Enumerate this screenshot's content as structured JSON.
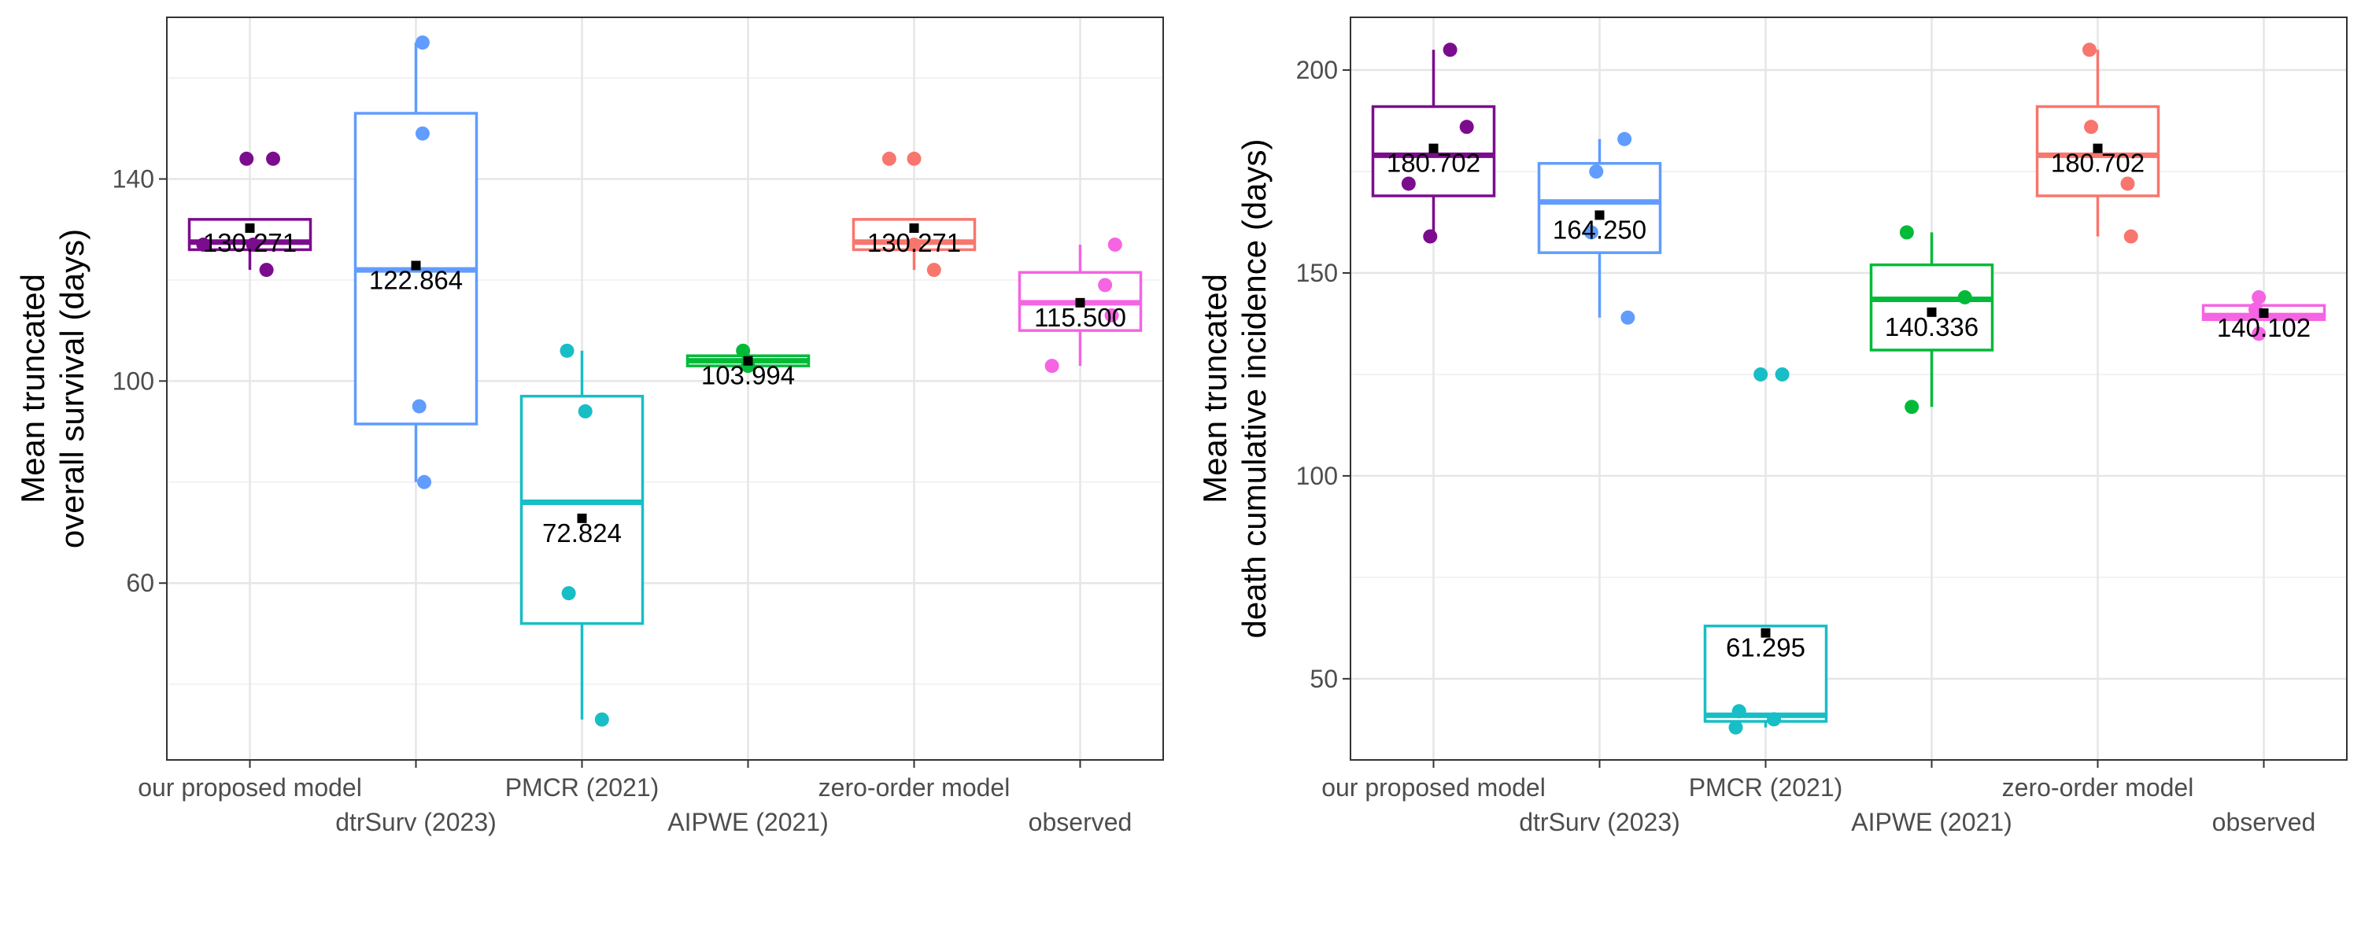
{
  "chart_data": [
    {
      "type": "box",
      "ylabel_lines": [
        "Mean truncated",
        "overall survival (days)"
      ],
      "ylim": [
        25,
        172
      ],
      "yticks": [
        60,
        100,
        140
      ],
      "categories": [
        "our proposed model",
        "dtrSurv (2023)",
        "PMCR (2021)",
        "AIPWE (2021)",
        "zero-order model",
        "observed"
      ],
      "grid": true,
      "boxes": [
        {
          "category": "our proposed model",
          "color": "#7B0C8E",
          "q1": 126,
          "median": 127.5,
          "q3": 132,
          "whisker_low": 122,
          "whisker_high": 132,
          "mean": 130.271,
          "mean_label": "130.271",
          "points": [
            [
              -0.28,
              127
            ],
            [
              -0.02,
              144
            ],
            [
              0.02,
              127
            ],
            [
              0.1,
              122
            ],
            [
              0.14,
              144
            ]
          ]
        },
        {
          "category": "dtrSurv (2023)",
          "color": "#619CFF",
          "q1": 91.5,
          "median": 122,
          "q3": 153,
          "whisker_low": 80,
          "whisker_high": 167,
          "mean": 122.864,
          "mean_label": "122.864",
          "points": [
            [
              0.04,
              167
            ],
            [
              0.04,
              149
            ],
            [
              0.02,
              95
            ],
            [
              0.05,
              80
            ]
          ]
        },
        {
          "category": "PMCR (2021)",
          "color": "#17BEC6",
          "q1": 52,
          "median": 76,
          "q3": 97,
          "whisker_low": 33,
          "whisker_high": 106,
          "mean": 72.824,
          "mean_label": "72.824",
          "points": [
            [
              -0.09,
              106
            ],
            [
              0.02,
              94
            ],
            [
              -0.08,
              58
            ],
            [
              0.12,
              33
            ]
          ]
        },
        {
          "category": "AIPWE (2021)",
          "color": "#00BA38",
          "q1": 103,
          "median": 104,
          "q3": 105,
          "whisker_low": 103,
          "whisker_high": 106,
          "mean": 103.994,
          "mean_label": "103.994",
          "points": [
            [
              -0.03,
              106
            ],
            [
              0.0,
              103
            ]
          ]
        },
        {
          "category": "zero-order model",
          "color": "#F8766D",
          "q1": 126,
          "median": 127.5,
          "q3": 132,
          "whisker_low": 122,
          "whisker_high": 132,
          "mean": 130.271,
          "mean_label": "130.271",
          "points": [
            [
              -0.15,
              144
            ],
            [
              0.0,
              144
            ],
            [
              0.0,
              127
            ],
            [
              0.12,
              122
            ]
          ]
        },
        {
          "category": "observed",
          "color": "#F564E3",
          "q1": 110,
          "median": 115.5,
          "q3": 121.5,
          "whisker_low": 103,
          "whisker_high": 127,
          "mean": 115.5,
          "mean_label": "115.500",
          "points": [
            [
              0.21,
              127
            ],
            [
              0.15,
              119
            ],
            [
              0.19,
              113
            ],
            [
              -0.17,
              103
            ]
          ]
        }
      ]
    },
    {
      "type": "box",
      "ylabel_lines": [
        "Mean truncated",
        "death cumulative incidence (days)"
      ],
      "ylim": [
        30,
        213
      ],
      "yticks": [
        50,
        100,
        150,
        200
      ],
      "categories": [
        "our proposed model",
        "dtrSurv (2023)",
        "PMCR (2021)",
        "AIPWE (2021)",
        "zero-order model",
        "observed"
      ],
      "grid": true,
      "boxes": [
        {
          "category": "our proposed model",
          "color": "#7B0C8E",
          "q1": 169,
          "median": 179,
          "q3": 191,
          "whisker_low": 159,
          "whisker_high": 205,
          "mean": 180.702,
          "mean_label": "180.702",
          "points": [
            [
              0.1,
              205
            ],
            [
              0.2,
              186
            ],
            [
              -0.15,
              172
            ],
            [
              -0.02,
              159
            ]
          ]
        },
        {
          "category": "dtrSurv (2023)",
          "color": "#619CFF",
          "q1": 155,
          "median": 167.5,
          "q3": 177,
          "whisker_low": 139,
          "whisker_high": 183,
          "mean": 164.25,
          "mean_label": "164.250",
          "points": [
            [
              0.15,
              183
            ],
            [
              -0.02,
              175
            ],
            [
              -0.05,
              160
            ],
            [
              0.17,
              139
            ]
          ]
        },
        {
          "category": "PMCR (2021)",
          "color": "#17BEC6",
          "q1": 39.5,
          "median": 41,
          "q3": 63,
          "whisker_low": 38,
          "whisker_high": 63,
          "mean": 61.295,
          "mean_label": "61.295",
          "points": [
            [
              -0.03,
              125
            ],
            [
              0.1,
              125
            ],
            [
              -0.16,
              42
            ],
            [
              -0.18,
              38
            ],
            [
              0.05,
              40
            ]
          ]
        },
        {
          "category": "AIPWE (2021)",
          "color": "#00BA38",
          "q1": 131,
          "median": 143.5,
          "q3": 152,
          "whisker_low": 117,
          "whisker_high": 160,
          "mean": 140.336,
          "mean_label": "140.336",
          "points": [
            [
              -0.15,
              160
            ],
            [
              0.2,
              144
            ],
            [
              -0.12,
              117
            ]
          ]
        },
        {
          "category": "zero-order model",
          "color": "#F8766D",
          "q1": 169,
          "median": 179,
          "q3": 191,
          "whisker_low": 159,
          "whisker_high": 205,
          "mean": 180.702,
          "mean_label": "180.702",
          "points": [
            [
              -0.05,
              205
            ],
            [
              -0.04,
              186
            ],
            [
              0.18,
              172
            ],
            [
              0.2,
              159
            ]
          ]
        },
        {
          "category": "observed",
          "color": "#F564E3",
          "q1": 138.5,
          "median": 139.5,
          "q3": 142,
          "whisker_low": 138.5,
          "whisker_high": 142,
          "mean": 140.102,
          "mean_label": "140.102",
          "points": [
            [
              -0.05,
              141
            ],
            [
              -0.03,
              135
            ],
            [
              -0.03,
              144
            ]
          ]
        }
      ]
    }
  ]
}
